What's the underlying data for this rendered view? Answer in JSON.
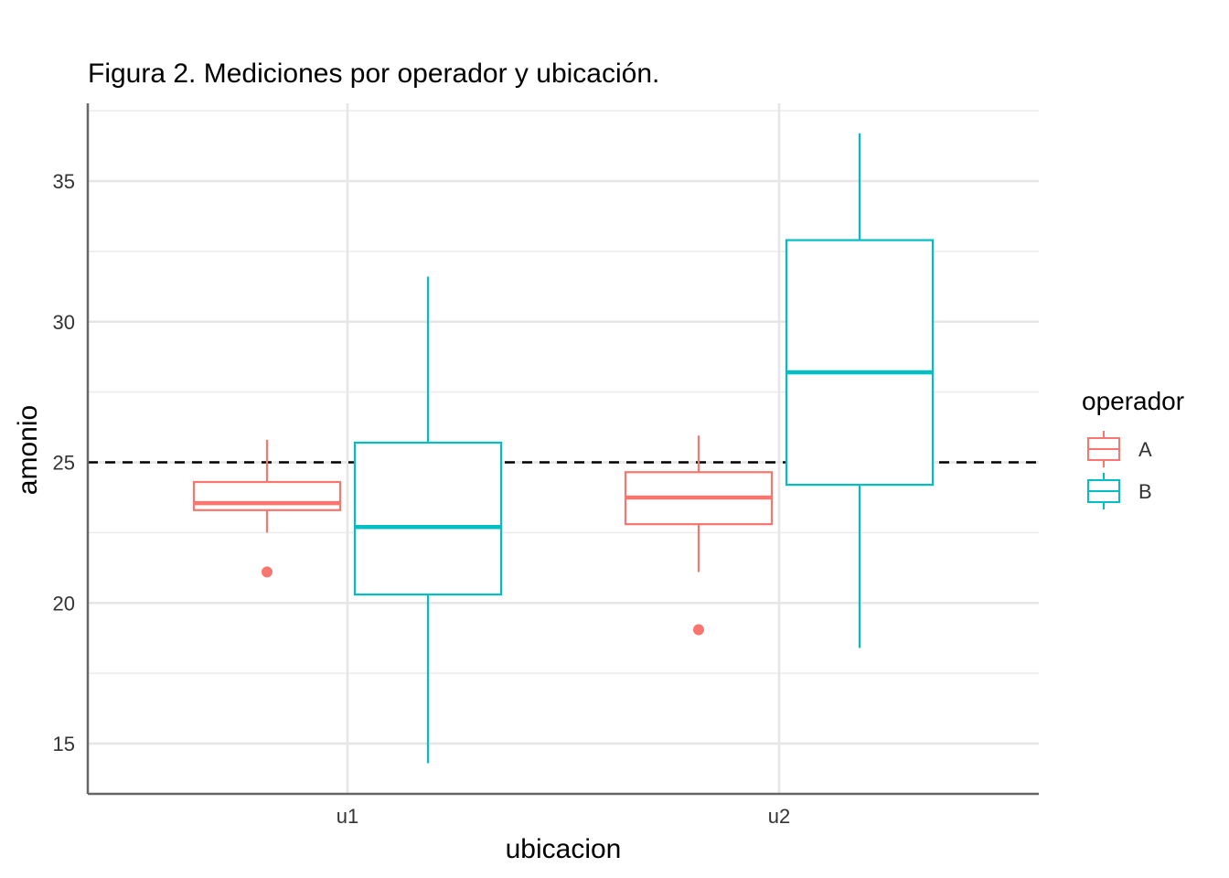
{
  "chart_data": {
    "type": "boxplot",
    "title": "Figura 2. Mediciones por operador y ubicación.",
    "xlabel": "ubicacion",
    "ylabel": "amonio",
    "categories": [
      "u1",
      "u2"
    ],
    "y_ticks": [
      15,
      20,
      25,
      30,
      35
    ],
    "y_tick_labels": [
      "15",
      "20",
      "25",
      "30",
      "35"
    ],
    "ylim": [
      13.5,
      37.5
    ],
    "grid": true,
    "reference_line": {
      "y": 25,
      "style": "dashed",
      "color": "#000000"
    },
    "legend": {
      "title": "operador",
      "position": "right"
    },
    "series": [
      {
        "name": "A",
        "color": "#F8766D",
        "boxes": [
          {
            "category": "u1",
            "whisker_low": 22.5,
            "q1": 23.3,
            "median": 23.55,
            "q3": 24.3,
            "whisker_high": 25.8,
            "outliers": [
              21.1
            ]
          },
          {
            "category": "u2",
            "whisker_low": 21.1,
            "q1": 22.8,
            "median": 23.75,
            "q3": 24.65,
            "whisker_high": 25.95,
            "outliers": [
              19.05
            ]
          }
        ]
      },
      {
        "name": "B",
        "color": "#00BFC4",
        "boxes": [
          {
            "category": "u1",
            "whisker_low": 14.3,
            "q1": 20.3,
            "median": 22.7,
            "q3": 25.7,
            "whisker_high": 31.6,
            "outliers": []
          },
          {
            "category": "u2",
            "whisker_low": 18.4,
            "q1": 24.2,
            "median": 28.2,
            "q3": 32.9,
            "whisker_high": 36.7,
            "outliers": []
          }
        ]
      }
    ]
  }
}
